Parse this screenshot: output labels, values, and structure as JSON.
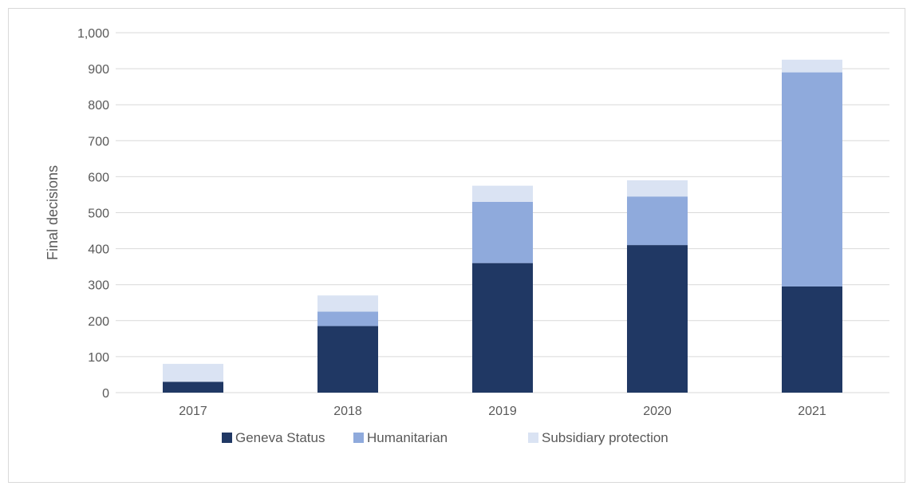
{
  "chart_data": {
    "type": "bar",
    "stacked": true,
    "title": "",
    "xlabel": "",
    "ylabel": "Final decisions",
    "ylim": [
      0,
      1000
    ],
    "ytick_step": 100,
    "yticks": [
      "0",
      "100",
      "200",
      "300",
      "400",
      "500",
      "600",
      "700",
      "800",
      "900",
      "1,000"
    ],
    "grid": true,
    "legend_position": "bottom",
    "categories": [
      "2017",
      "2018",
      "2019",
      "2020",
      "2021"
    ],
    "series": [
      {
        "name": "Geneva Status",
        "color": "#203864",
        "values": [
          30,
          185,
          360,
          410,
          295
        ]
      },
      {
        "name": "Humanitarian",
        "color": "#8faadc",
        "values": [
          0,
          40,
          170,
          135,
          595
        ]
      },
      {
        "name": "Subsidiary protection",
        "color": "#dae3f3",
        "values": [
          50,
          45,
          45,
          45,
          35
        ]
      }
    ]
  }
}
